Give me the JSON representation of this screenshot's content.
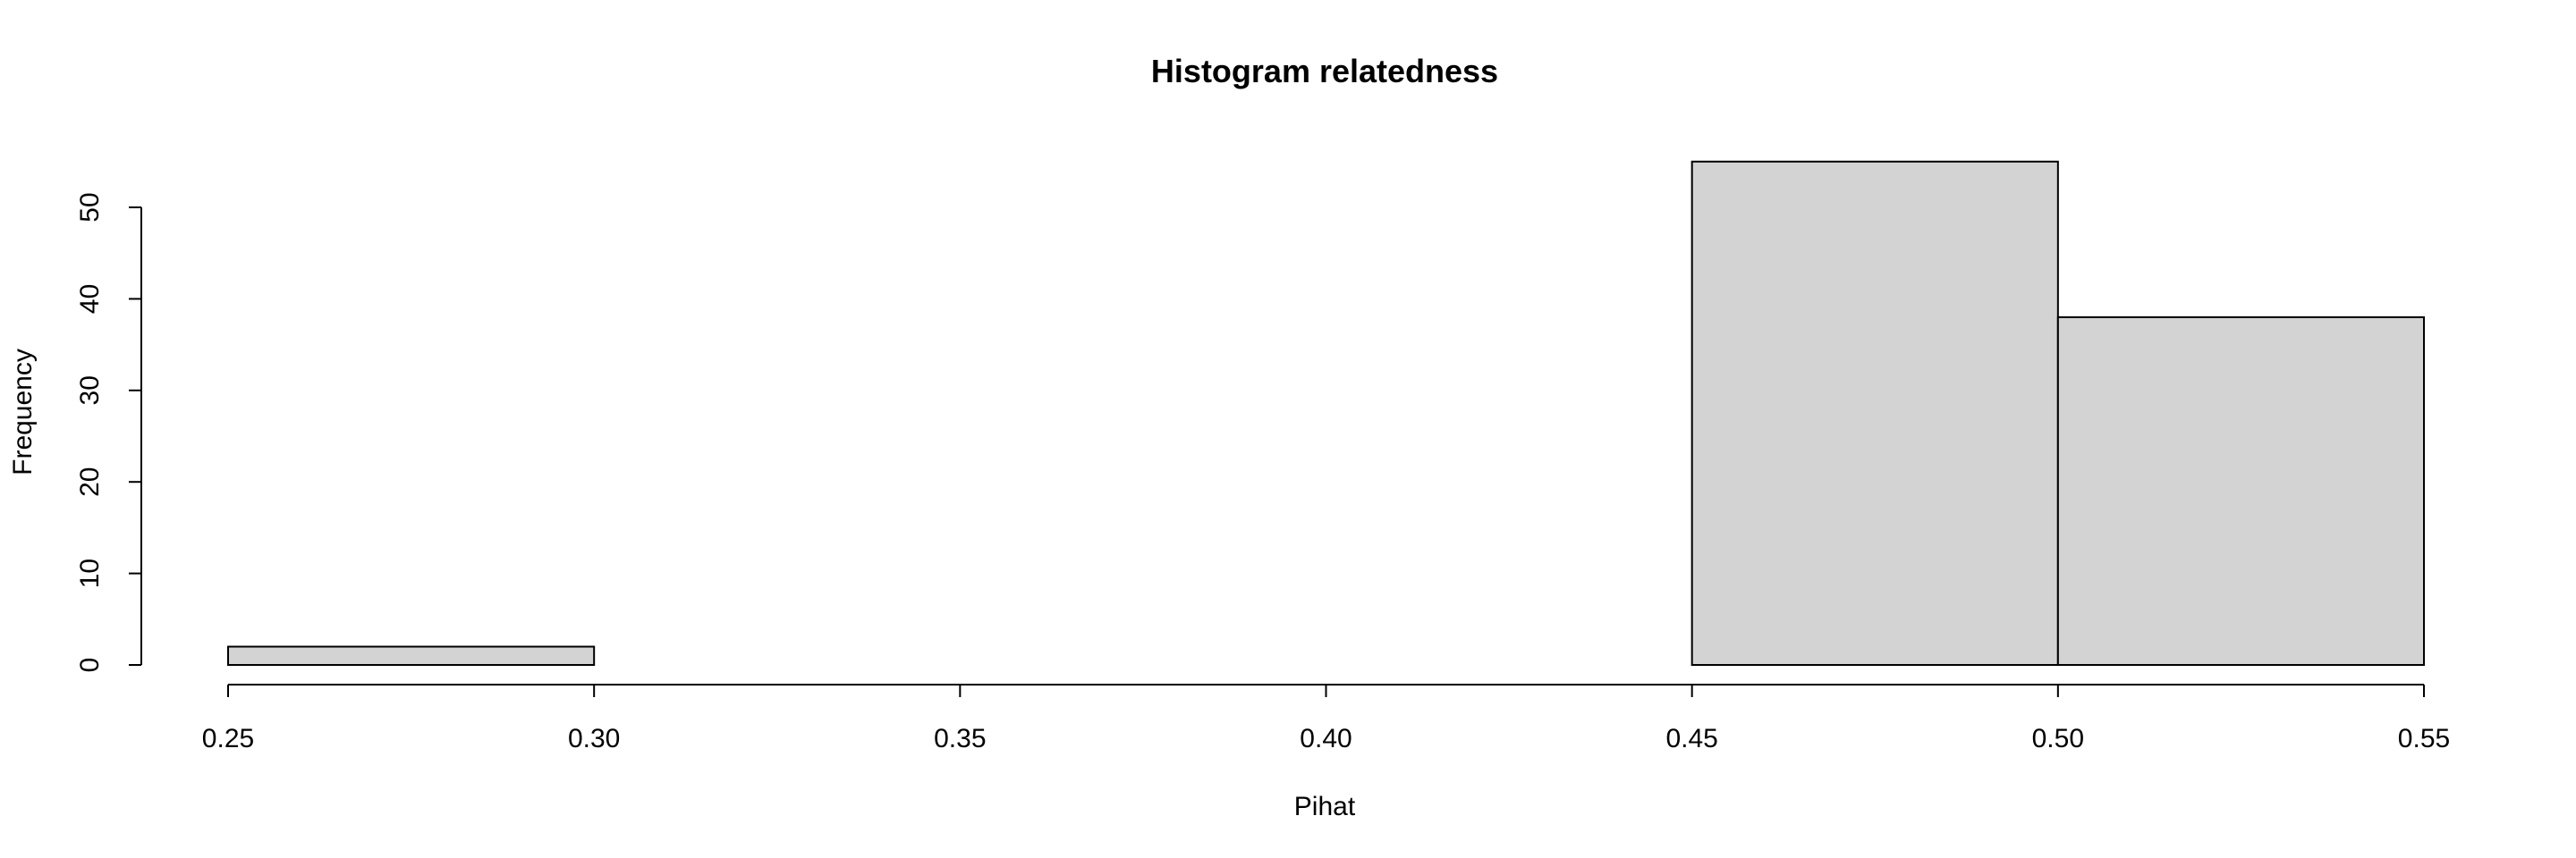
{
  "chart_data": {
    "type": "bar",
    "title": "Histogram relatedness",
    "xlabel": "Pihat",
    "ylabel": "Frequency",
    "bins": [
      {
        "start": 0.25,
        "end": 0.3,
        "count": 2
      },
      {
        "start": 0.3,
        "end": 0.35,
        "count": 0
      },
      {
        "start": 0.35,
        "end": 0.4,
        "count": 0
      },
      {
        "start": 0.4,
        "end": 0.45,
        "count": 0
      },
      {
        "start": 0.45,
        "end": 0.5,
        "count": 55
      },
      {
        "start": 0.5,
        "end": 0.55,
        "count": 38
      }
    ],
    "xlim": [
      0.25,
      0.55
    ],
    "ylim": [
      0,
      55
    ],
    "x_ticks": [
      "0.25",
      "0.30",
      "0.35",
      "0.40",
      "0.45",
      "0.50",
      "0.55"
    ],
    "x_tick_values": [
      0.25,
      0.3,
      0.35,
      0.4,
      0.45,
      0.5,
      0.55
    ],
    "y_ticks": [
      "0",
      "10",
      "20",
      "30",
      "40",
      "50"
    ],
    "y_tick_values": [
      0,
      10,
      20,
      30,
      40,
      50
    ],
    "bar_color": "#d3d3d3",
    "grid": false,
    "legend": "none"
  }
}
